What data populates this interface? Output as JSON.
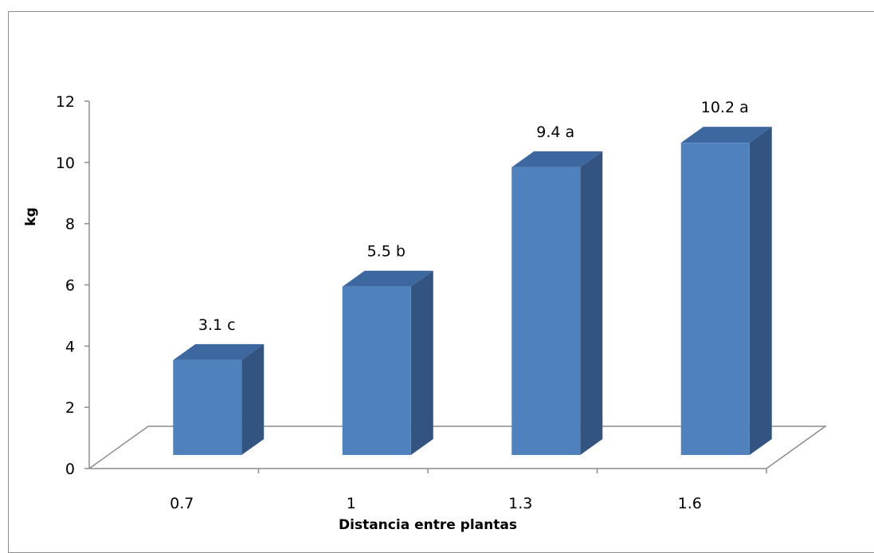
{
  "chart_data": {
    "type": "bar",
    "categories": [
      "0.7",
      "1",
      "1.3",
      "1.6"
    ],
    "values": [
      3.1,
      5.5,
      9.4,
      10.2
    ],
    "data_labels": [
      "3.1 c",
      "5.5 b",
      "9.4 a",
      "10.2 a"
    ],
    "title": "",
    "xlabel": "Distancia entre plantas",
    "ylabel": "kg",
    "ylim": [
      0,
      12
    ],
    "yticks": [
      0,
      2,
      4,
      6,
      8,
      10,
      12
    ],
    "grid": false,
    "legend": "none",
    "style": "3d-column"
  },
  "colors": {
    "bar_front": "#4f81bd",
    "bar_top": "#3d679f",
    "bar_side": "#335380",
    "axis": "#8c8c8c"
  }
}
